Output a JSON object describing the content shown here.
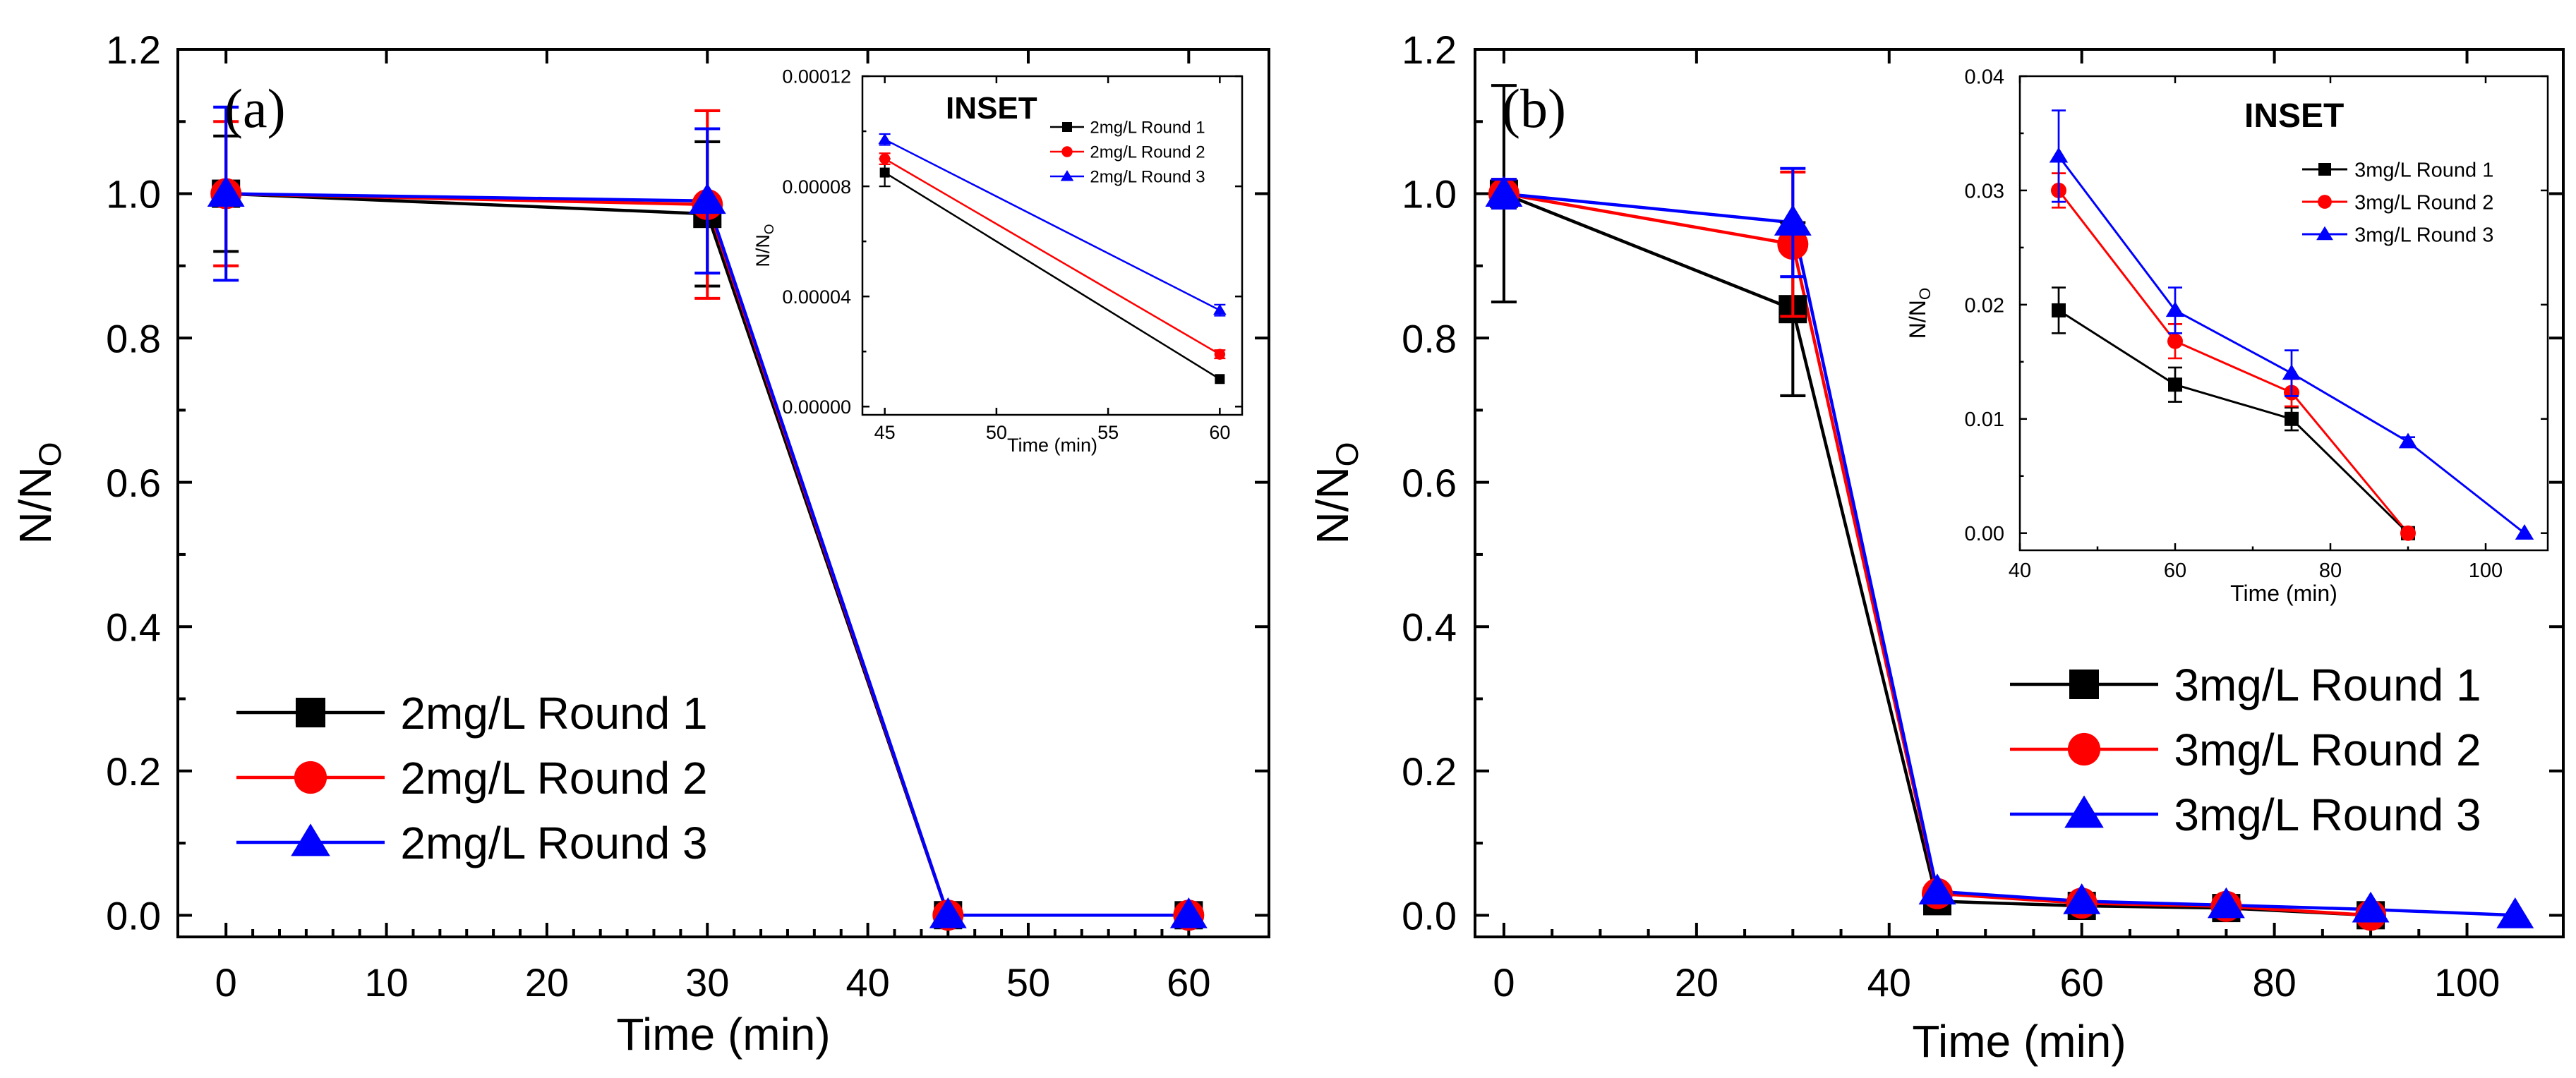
{
  "chart_data": [
    {
      "type": "line",
      "panel_label": "(a)",
      "xlabel": "Time (min)",
      "ylabel_main": "N/N",
      "ylabel_sub": "O",
      "xlim": [
        -3,
        65
      ],
      "ylim": [
        -0.03,
        1.2
      ],
      "xticks": [
        0,
        10,
        20,
        30,
        40,
        50,
        60
      ],
      "yticks": [
        0.0,
        0.2,
        0.4,
        0.6,
        0.8,
        1.0,
        1.2
      ],
      "x_tick_labels": [
        "0",
        "10",
        "20",
        "30",
        "40",
        "50",
        "60"
      ],
      "y_tick_labels": [
        "0.0",
        "0.2",
        "0.4",
        "0.6",
        "0.8",
        "1.0",
        "1.2"
      ],
      "legend_position": "bottom-left",
      "series": [
        {
          "name": "2mg/L Round 1",
          "color": "#000000",
          "marker": "square",
          "x": [
            0,
            30,
            45,
            60
          ],
          "y": [
            1.0,
            0.972,
            0.0001,
            1e-05
          ],
          "err": [
            0.08,
            0.1,
            0,
            0
          ]
        },
        {
          "name": "2mg/L Round 2",
          "color": "#ff0000",
          "marker": "circle",
          "x": [
            0,
            30,
            45,
            60
          ],
          "y": [
            1.0,
            0.985,
            0.0001,
            2e-05
          ],
          "err": [
            0.1,
            0.13,
            0,
            0
          ]
        },
        {
          "name": "2mg/L Round 3",
          "color": "#0000ff",
          "marker": "triangle",
          "x": [
            0,
            30,
            45,
            60
          ],
          "y": [
            1.0,
            0.99,
            0.0001,
            3.5e-05
          ],
          "err": [
            0.12,
            0.1,
            0,
            0
          ]
        }
      ],
      "inset": {
        "title": "INSET",
        "xlabel": "Time (min)",
        "ylabel_main": "N/N",
        "ylabel_sub": "O",
        "xlim": [
          44,
          61
        ],
        "ylim": [
          -3e-06,
          0.00012
        ],
        "xticks": [
          45,
          50,
          55,
          60
        ],
        "yticks": [
          0.0,
          4e-05,
          8e-05,
          0.00012
        ],
        "x_tick_labels": [
          "45",
          "50",
          "55",
          "60"
        ],
        "y_tick_labels": [
          "0.00000",
          "0.00004",
          "0.00008",
          "0.00012"
        ],
        "legend_position": "top-right",
        "series": [
          {
            "name": "2mg/L Round 1",
            "color": "#000000",
            "marker": "square",
            "x": [
              45,
              60
            ],
            "y": [
              8.5e-05,
              1e-05
            ],
            "err": [
              5e-06,
              0
            ]
          },
          {
            "name": "2mg/L Round 2",
            "color": "#ff0000",
            "marker": "circle",
            "x": [
              45,
              60
            ],
            "y": [
              9e-05,
              1.9e-05
            ],
            "err": [
              2e-06,
              1.5e-06
            ]
          },
          {
            "name": "2mg/L Round 3",
            "color": "#0000ff",
            "marker": "triangle",
            "x": [
              45,
              60
            ],
            "y": [
              9.7e-05,
              3.5e-05
            ],
            "err": [
              2e-06,
              2e-06
            ]
          }
        ]
      }
    },
    {
      "type": "line",
      "panel_label": "(b)",
      "xlabel": "Time (min)",
      "ylabel_main": "N/N",
      "ylabel_sub": "O",
      "xlim": [
        -3,
        110
      ],
      "ylim": [
        -0.03,
        1.2
      ],
      "xticks": [
        0,
        20,
        40,
        60,
        80,
        100
      ],
      "yticks": [
        0.0,
        0.2,
        0.4,
        0.6,
        0.8,
        1.0,
        1.2
      ],
      "x_tick_labels": [
        "0",
        "20",
        "40",
        "60",
        "80",
        "100"
      ],
      "y_tick_labels": [
        "0.0",
        "0.2",
        "0.4",
        "0.6",
        "0.8",
        "1.0",
        "1.2"
      ],
      "legend_position": "bottom-right",
      "series": [
        {
          "name": "3mg/L Round 1",
          "color": "#000000",
          "marker": "square",
          "x": [
            0,
            30,
            45,
            60,
            75,
            90
          ],
          "y": [
            1.0,
            0.84,
            0.0195,
            0.013,
            0.01,
            0.0
          ],
          "err": [
            0.15,
            0.12,
            0,
            0,
            0,
            0
          ]
        },
        {
          "name": "3mg/L Round 2",
          "color": "#ff0000",
          "marker": "circle",
          "x": [
            0,
            30,
            45,
            60,
            75,
            90
          ],
          "y": [
            1.0,
            0.93,
            0.03,
            0.0168,
            0.0123,
            0.0
          ],
          "err": [
            0.02,
            0.1,
            0,
            0,
            0,
            0
          ]
        },
        {
          "name": "3mg/L Round 3",
          "color": "#0000ff",
          "marker": "triangle",
          "x": [
            0,
            30,
            45,
            60,
            75,
            90,
            105
          ],
          "y": [
            1.0,
            0.96,
            0.033,
            0.0195,
            0.014,
            0.008,
            0.0
          ],
          "err": [
            0.02,
            0.075,
            0,
            0,
            0,
            0,
            0
          ]
        }
      ],
      "inset": {
        "title": "INSET",
        "xlabel": "Time (min)",
        "ylabel_main": "N/N",
        "ylabel_sub": "O",
        "xlim": [
          40,
          108
        ],
        "ylim": [
          -0.0015,
          0.04
        ],
        "xticks": [
          40,
          60,
          80,
          100
        ],
        "yticks": [
          0.0,
          0.01,
          0.02,
          0.03,
          0.04
        ],
        "x_tick_labels": [
          "40",
          "60",
          "80",
          "100"
        ],
        "y_tick_labels": [
          "0.00",
          "0.01",
          "0.02",
          "0.03",
          "0.04"
        ],
        "legend_position": "top-right",
        "series": [
          {
            "name": "3mg/L Round 1",
            "color": "#000000",
            "marker": "square",
            "x": [
              45,
              60,
              75,
              90
            ],
            "y": [
              0.0195,
              0.013,
              0.01,
              0.0
            ],
            "err": [
              0.002,
              0.0015,
              0.001,
              0
            ]
          },
          {
            "name": "3mg/L Round 2",
            "color": "#ff0000",
            "marker": "circle",
            "x": [
              45,
              60,
              75,
              90
            ],
            "y": [
              0.03,
              0.0168,
              0.0123,
              0.0
            ],
            "err": [
              0.0015,
              0.0015,
              0.0012,
              0
            ]
          },
          {
            "name": "3mg/L Round 3",
            "color": "#0000ff",
            "marker": "triangle",
            "x": [
              45,
              60,
              75,
              90,
              105
            ],
            "y": [
              0.033,
              0.0195,
              0.014,
              0.008,
              0.0
            ],
            "err": [
              0.004,
              0.002,
              0.002,
              0.0004,
              0
            ]
          }
        ]
      }
    }
  ]
}
